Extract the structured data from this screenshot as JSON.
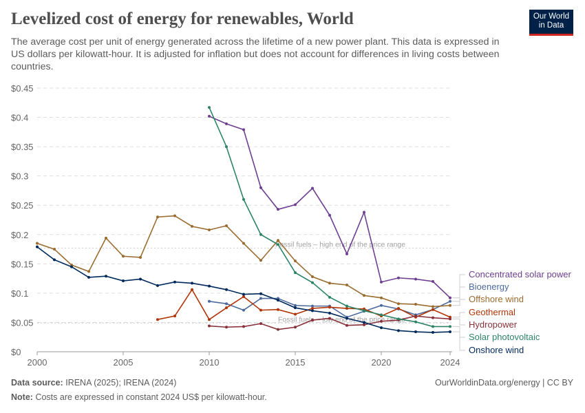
{
  "header": {
    "title": "Levelized cost of energy for renewables, World",
    "subtitle": "The average cost per unit of energy generated across the lifetime of a new power plant. This data is expressed in US dollars per kilowatt-hour. It is adjusted for inflation but does not account for differences in living costs between countries.",
    "logo": "Our World in Data"
  },
  "footer": {
    "source_label": "Data source:",
    "source": "IRENA (2025); IRENA (2024)",
    "url": "OurWorldinData.org/energy | CC BY",
    "note_label": "Note:",
    "note": "Costs are expressed in constant 2024 US$ per kilowatt-hour."
  },
  "chart_data": {
    "type": "line",
    "title": "Levelized cost of energy for renewables, World",
    "xlim": [
      2000,
      2024
    ],
    "ylim": [
      0,
      0.45
    ],
    "x_ticks": [
      2000,
      2005,
      2010,
      2015,
      2020,
      2024
    ],
    "y_ticks": [
      0,
      0.05,
      0.1,
      0.15,
      0.2,
      0.25,
      0.3,
      0.35,
      0.4,
      0.45
    ],
    "y_tick_labels": [
      "$0",
      "$0.05",
      "$0.1",
      "$0.15",
      "$0.2",
      "$0.25",
      "$0.3",
      "$0.35",
      "$0.4",
      "$0.45"
    ],
    "grid": "horizontal dashed",
    "legend_placement": "right",
    "reference_lines": [
      {
        "label": "Fossil fuels – high end of the price range",
        "value": 0.177
      },
      {
        "label": "Fossil fuels – low end of the price range",
        "value": 0.049
      }
    ],
    "series": [
      {
        "name": "Concentrated solar power",
        "color": "#6d3e91",
        "start": 2010,
        "values": [
          0.402,
          0.389,
          0.379,
          0.28,
          0.243,
          0.251,
          0.279,
          0.233,
          0.167,
          0.238,
          0.119,
          0.126,
          0.124,
          0.12,
          0.092
        ]
      },
      {
        "name": "Bioenergy",
        "color": "#4c6a9c",
        "start": 2010,
        "values": [
          0.086,
          0.082,
          0.071,
          0.091,
          0.091,
          0.079,
          0.078,
          0.078,
          0.059,
          0.069,
          0.079,
          0.073,
          0.063,
          0.072,
          0.086
        ]
      },
      {
        "name": "Offshore wind",
        "color": "#9a6c30",
        "start": 2000,
        "values": [
          0.185,
          0.175,
          0.148,
          0.137,
          0.194,
          0.163,
          0.161,
          0.23,
          0.232,
          0.214,
          0.208,
          0.215,
          0.185,
          0.156,
          0.19,
          0.155,
          0.128,
          0.117,
          0.114,
          0.096,
          0.092,
          0.082,
          0.081,
          0.077,
          0.079
        ]
      },
      {
        "name": "Geothermal",
        "color": "#b13507",
        "start": 2007,
        "values": [
          0.055,
          0.061,
          0.106,
          0.055,
          0.075,
          0.094,
          0.071,
          0.072,
          0.064,
          0.074,
          0.076,
          0.074,
          0.073,
          0.061,
          0.074,
          0.059,
          0.072,
          0.059
        ]
      },
      {
        "name": "Hydropower",
        "color": "#883039",
        "start": 2010,
        "values": [
          0.044,
          0.042,
          0.043,
          0.048,
          0.038,
          0.042,
          0.054,
          0.057,
          0.045,
          0.046,
          0.052,
          0.054,
          0.061,
          0.058,
          0.056
        ]
      },
      {
        "name": "Solar photovoltaic",
        "color": "#2c8465",
        "start": 2010,
        "values": [
          0.417,
          0.35,
          0.26,
          0.2,
          0.183,
          0.135,
          0.118,
          0.093,
          0.078,
          0.07,
          0.063,
          0.056,
          0.051,
          0.043,
          0.043
        ]
      },
      {
        "name": "Onshore wind",
        "color": "#00295b",
        "start": 2000,
        "values": [
          0.179,
          0.157,
          0.145,
          0.127,
          0.129,
          0.121,
          0.124,
          0.113,
          0.119,
          0.117,
          0.112,
          0.106,
          0.098,
          0.099,
          0.088,
          0.075,
          0.07,
          0.066,
          0.057,
          0.05,
          0.041,
          0.036,
          0.034,
          0.033,
          0.034
        ]
      }
    ]
  }
}
